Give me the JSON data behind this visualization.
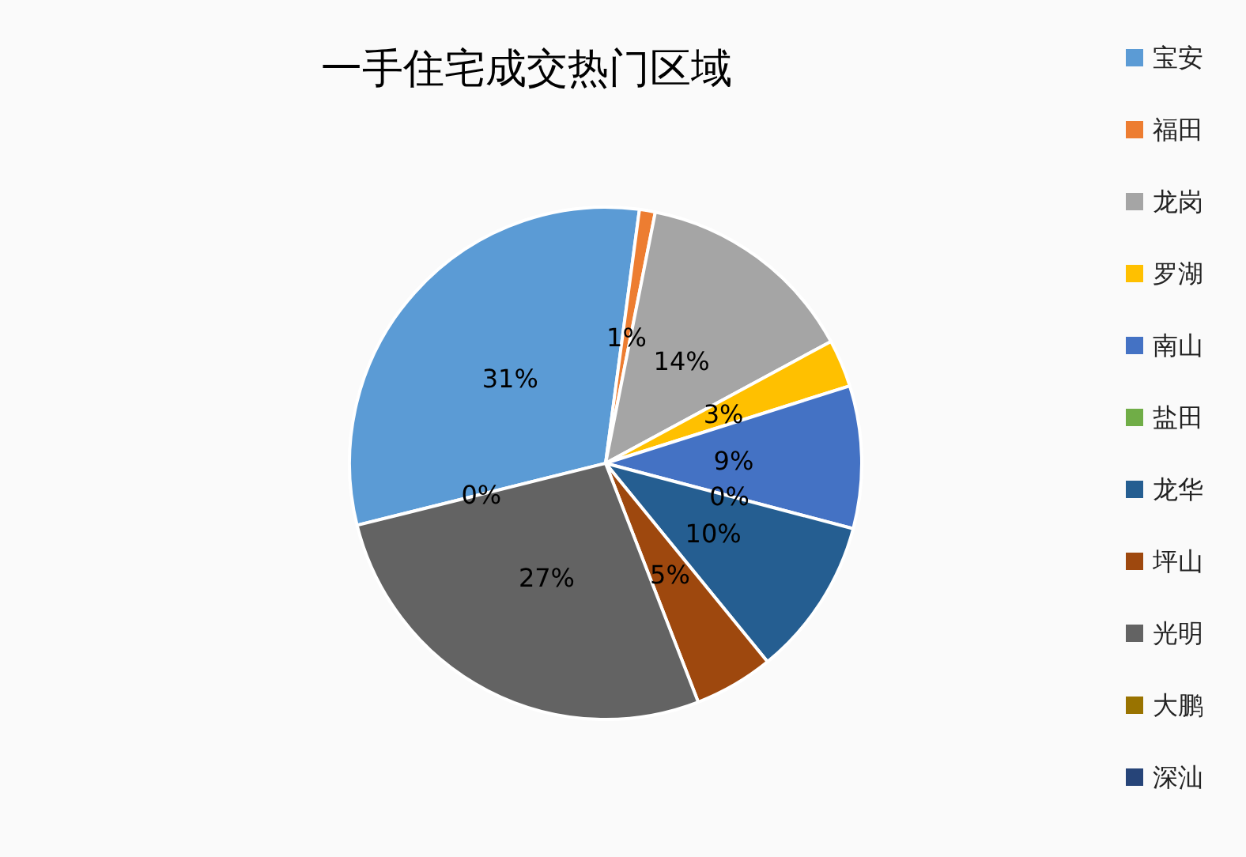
{
  "chart_data": {
    "type": "pie",
    "title": "一手住宅成交热门区域",
    "categories": [
      "宝安",
      "福田",
      "龙岗",
      "罗湖",
      "南山",
      "盐田",
      "龙华",
      "坪山",
      "光明",
      "大鹏",
      "深汕"
    ],
    "values": [
      31,
      1,
      14,
      3,
      9,
      0,
      10,
      5,
      27,
      0,
      0
    ],
    "colors": [
      "#5b9bd5",
      "#ed7d31",
      "#a5a5a5",
      "#ffc000",
      "#4472c4",
      "#70ad47",
      "#255e91",
      "#9e480e",
      "#636363",
      "#997300",
      "#264478"
    ],
    "value_labels": [
      "31%",
      "1%",
      "14%",
      "3%",
      "9%",
      "0%",
      "10%",
      "5%",
      "27%",
      "0%",
      null
    ],
    "legend": "right"
  }
}
